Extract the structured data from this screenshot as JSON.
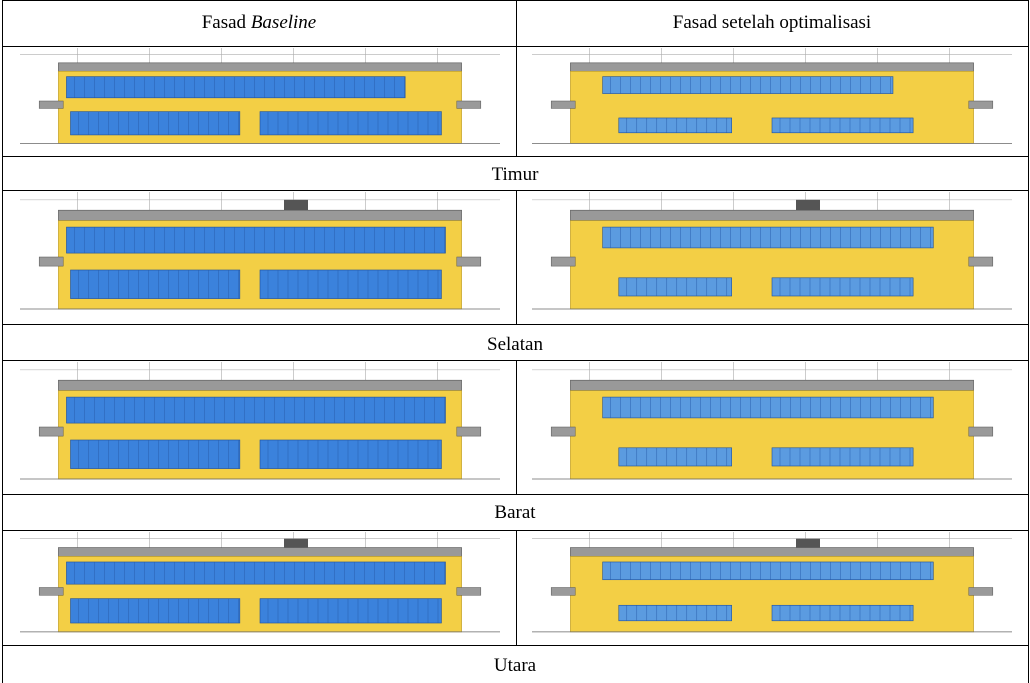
{
  "table": {
    "header": [
      {
        "text": "Fasad",
        "italic": "Baseline"
      },
      {
        "text": "Fasad setelah optimalisasi"
      }
    ],
    "sections": [
      {
        "label": "Timur"
      },
      {
        "label": "Selatan"
      },
      {
        "label": "Barat"
      },
      {
        "label": "Utara"
      }
    ]
  }
}
